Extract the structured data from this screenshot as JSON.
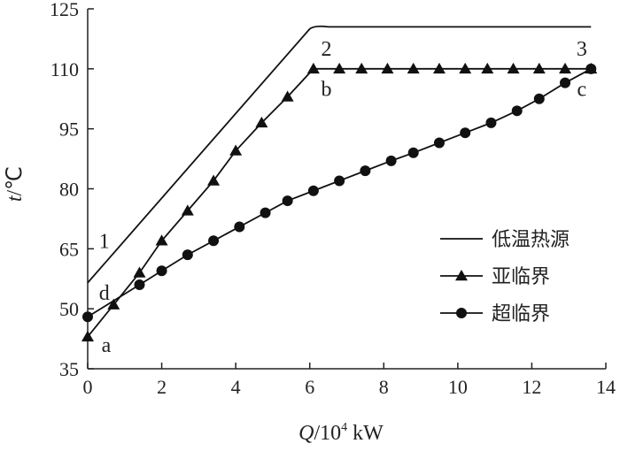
{
  "chart_data": {
    "type": "line",
    "xlabel": {
      "var": "Q",
      "unit": "/10",
      "exp": "4",
      "tail": " kW"
    },
    "ylabel": {
      "var": "t",
      "unit": "/℃"
    },
    "xlim": [
      0,
      14
    ],
    "ylim": [
      35,
      125
    ],
    "x_ticks": [
      0,
      2,
      4,
      6,
      8,
      10,
      12,
      14
    ],
    "y_ticks": [
      35,
      50,
      65,
      80,
      95,
      110,
      125
    ],
    "grid": false,
    "legend_position": "right",
    "series": [
      {
        "name": "低温热源",
        "marker": "none",
        "x": [
          0,
          6.0,
          6.5,
          13.6
        ],
        "y": [
          56.5,
          120,
          120.5,
          120.5
        ]
      },
      {
        "name": "亚临界",
        "marker": "triangle",
        "x": [
          0,
          0.7,
          1.4,
          2.0,
          2.7,
          3.4,
          4.0,
          4.7,
          5.4,
          6.1,
          6.8,
          7.4,
          8.1,
          8.8,
          9.5,
          10.2,
          10.8,
          11.5,
          12.2,
          12.9,
          13.6
        ],
        "y": [
          43,
          51,
          59,
          67,
          74.5,
          82,
          89.5,
          96.5,
          103,
          110,
          110,
          110,
          110,
          110,
          110,
          110,
          110,
          110,
          110,
          110,
          110
        ]
      },
      {
        "name": "超临界",
        "marker": "circle",
        "x": [
          0,
          1.4,
          2.0,
          2.7,
          3.4,
          4.1,
          4.8,
          5.4,
          6.1,
          6.8,
          7.5,
          8.2,
          8.8,
          9.5,
          10.2,
          10.9,
          11.6,
          12.2,
          12.9,
          13.6
        ],
        "y": [
          48,
          56,
          59.5,
          63.5,
          67,
          70.5,
          74,
          77,
          79.5,
          82,
          84.5,
          87,
          89,
          91.5,
          94,
          96.5,
          99.5,
          102.5,
          106.5,
          110
        ]
      }
    ],
    "annotations": [
      {
        "text": "1",
        "x": 0.45,
        "y": 67
      },
      {
        "text": "2",
        "x": 6.45,
        "y": 115
      },
      {
        "text": "3",
        "x": 13.35,
        "y": 115
      },
      {
        "text": "a",
        "x": 0.5,
        "y": 41
      },
      {
        "text": "b",
        "x": 6.45,
        "y": 105
      },
      {
        "text": "c",
        "x": 13.35,
        "y": 105
      },
      {
        "text": "d",
        "x": 0.45,
        "y": 54
      }
    ]
  }
}
